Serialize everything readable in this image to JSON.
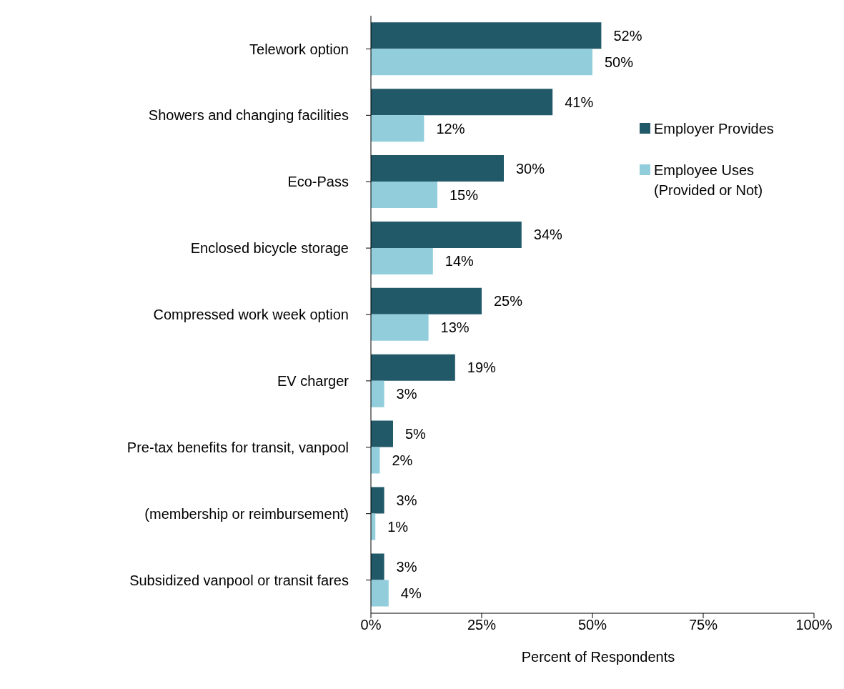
{
  "chart_data": {
    "type": "bar",
    "orientation": "horizontal",
    "xlabel": "Percent of Respondents",
    "categories": [
      "Telework option",
      "Showers and changing facilities",
      "Eco-Pass",
      "Enclosed bicycle storage",
      "Compressed work week option",
      "EV charger",
      "Pre-tax benefits for transit, vanpool",
      "(membership or reimbursement)",
      "Subsidized vanpool or transit fares"
    ],
    "series": [
      {
        "name": "Employer Provides",
        "color": "#215968",
        "values": [
          52,
          41,
          30,
          34,
          25,
          19,
          5,
          3,
          3
        ],
        "value_labels": [
          "52%",
          "41%",
          "30%",
          "34%",
          "25%",
          "19%",
          "5%",
          "3%",
          "3%"
        ]
      },
      {
        "name": "Employee Uses (Provided or Not)",
        "color": "#92cddc",
        "values": [
          50,
          12,
          15,
          14,
          13,
          3,
          2,
          1,
          4
        ],
        "value_labels": [
          "50%",
          "12%",
          "15%",
          "14%",
          "13%",
          "3%",
          "2%",
          "1%",
          "4%"
        ]
      }
    ],
    "xlim": [
      0,
      100
    ],
    "xticks": [
      {
        "value": 0,
        "label": "0%"
      },
      {
        "value": 25,
        "label": "25%"
      },
      {
        "value": 50,
        "label": "50%"
      },
      {
        "value": 75,
        "label": "75%"
      },
      {
        "value": 100,
        "label": "100%"
      }
    ],
    "grid": false,
    "legend": "right"
  }
}
